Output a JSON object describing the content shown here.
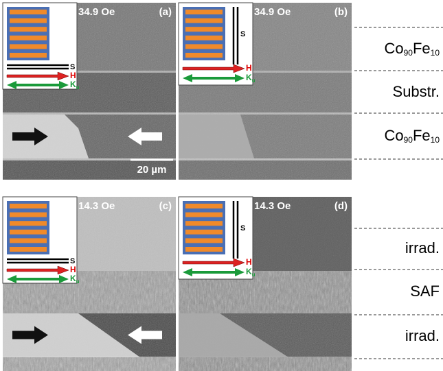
{
  "panels": [
    {
      "field": "34.9 Oe",
      "label": "(a)"
    },
    {
      "field": "34.9 Oe",
      "label": "(b)"
    },
    {
      "field": "14.3 Oe",
      "label": "(c)"
    },
    {
      "field": "14.3 Oe",
      "label": "(d)"
    }
  ],
  "legend": {
    "s": "S",
    "h": "H",
    "k": "K",
    "k_sub": "u"
  },
  "scale_bar": "20 µm",
  "top_labels": [
    [
      "Co",
      "90",
      "Fe",
      "10"
    ],
    [
      "Substr."
    ],
    [
      "Co",
      "90",
      "Fe",
      "10"
    ]
  ],
  "bottom_labels": [
    "irrad.",
    "SAF",
    "irrad."
  ]
}
